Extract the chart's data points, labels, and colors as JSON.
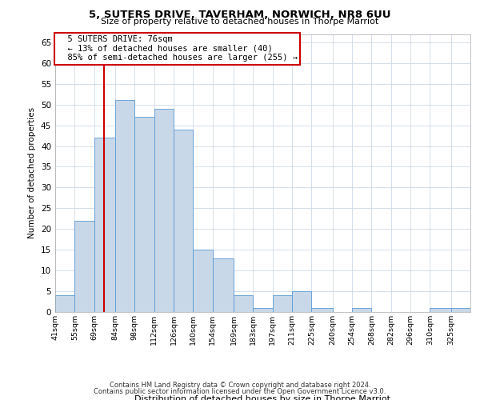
{
  "title": "5, SUTERS DRIVE, TAVERHAM, NORWICH, NR8 6UU",
  "subtitle": "Size of property relative to detached houses in Thorpe Marriot",
  "xlabel": "Distribution of detached houses by size in Thorpe Marriot",
  "ylabel": "Number of detached properties",
  "footer_line1": "Contains HM Land Registry data © Crown copyright and database right 2024.",
  "footer_line2": "Contains public sector information licensed under the Open Government Licence v3.0.",
  "annotation_title": "5 SUTERS DRIVE: 76sqm",
  "annotation_line1": "← 13% of detached houses are smaller (40)",
  "annotation_line2": "85% of semi-detached houses are larger (255) →",
  "red_line_x": 76,
  "categories": [
    "41sqm",
    "55sqm",
    "69sqm",
    "84sqm",
    "98sqm",
    "112sqm",
    "126sqm",
    "140sqm",
    "154sqm",
    "169sqm",
    "183sqm",
    "197sqm",
    "211sqm",
    "225sqm",
    "240sqm",
    "254sqm",
    "268sqm",
    "282sqm",
    "296sqm",
    "310sqm",
    "325sqm"
  ],
  "bin_edges": [
    41,
    55,
    69,
    84,
    98,
    112,
    126,
    140,
    154,
    169,
    183,
    197,
    211,
    225,
    240,
    254,
    268,
    282,
    296,
    310,
    325,
    339
  ],
  "values": [
    4,
    22,
    42,
    51,
    47,
    49,
    44,
    15,
    13,
    4,
    1,
    4,
    5,
    1,
    0,
    1,
    0,
    0,
    0,
    1,
    1
  ],
  "bar_color": "#c8d8e8",
  "bar_edge_color": "#5b9bd5",
  "red_line_color": "#cc0000",
  "grid_color": "#d0d8e8",
  "background_color": "#ffffff",
  "annotation_box_color": "#ffffff",
  "annotation_box_edge": "#cc0000",
  "ylim": [
    0,
    67
  ],
  "yticks": [
    0,
    5,
    10,
    15,
    20,
    25,
    30,
    35,
    40,
    45,
    50,
    55,
    60,
    65
  ]
}
